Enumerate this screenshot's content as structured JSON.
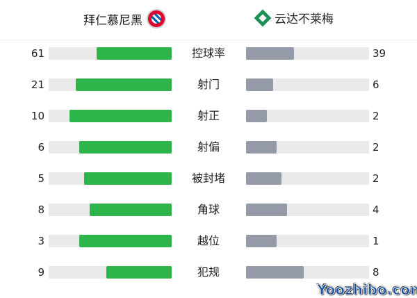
{
  "home": {
    "name": "拜仁慕尼黑",
    "crest": "bayern-crest",
    "color": "#2db44a"
  },
  "away": {
    "name": "云达不莱梅",
    "crest": "werder-crest",
    "color": "#959aa8"
  },
  "stats": [
    {
      "label": "控球率",
      "home": 61,
      "away": 39
    },
    {
      "label": "射门",
      "home": 21,
      "away": 6
    },
    {
      "label": "射正",
      "home": 10,
      "away": 2
    },
    {
      "label": "射偏",
      "home": 6,
      "away": 2
    },
    {
      "label": "被封堵",
      "home": 5,
      "away": 2
    },
    {
      "label": "角球",
      "home": 8,
      "away": 4
    },
    {
      "label": "越位",
      "home": 3,
      "away": 1
    },
    {
      "label": "犯规",
      "home": 9,
      "away": 8
    }
  ],
  "watermark": "Yoozhibo.com"
}
